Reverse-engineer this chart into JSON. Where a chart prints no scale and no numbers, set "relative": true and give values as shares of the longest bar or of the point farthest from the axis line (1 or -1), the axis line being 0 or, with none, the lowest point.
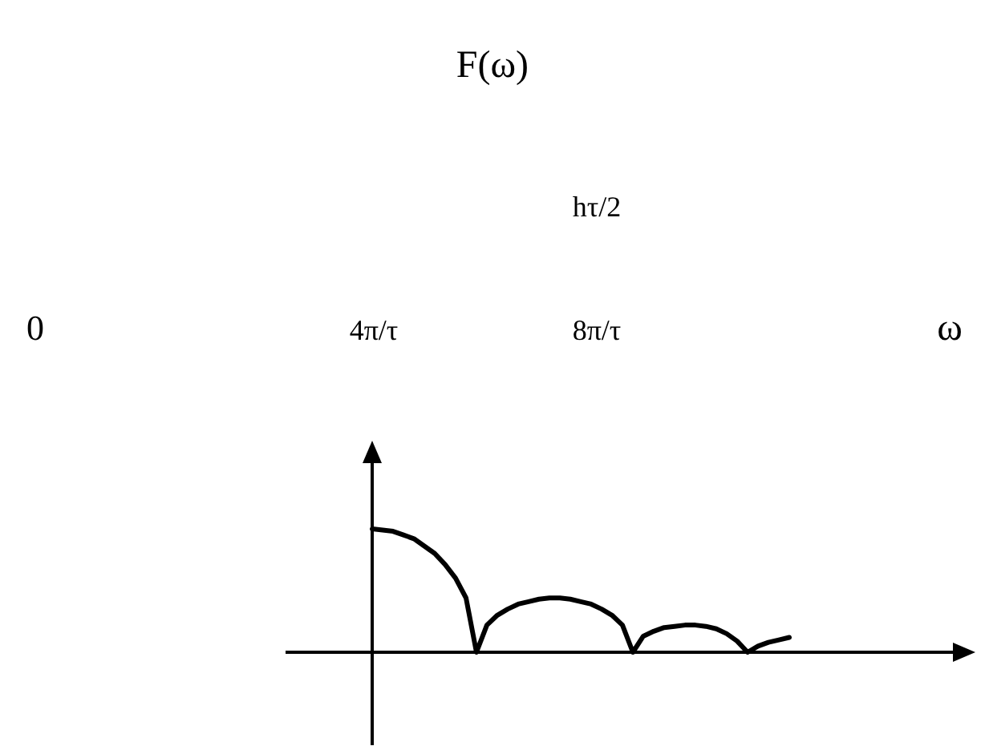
{
  "chart_data": {
    "type": "line",
    "relative": true,
    "annotations": [
      "F(ω)",
      "hτ/2",
      "0",
      "4π/τ",
      "8π/τ",
      "ω"
    ],
    "categories": [
      null,
      null,
      null,
      null,
      null,
      null,
      null,
      null,
      null,
      null,
      null,
      null,
      null,
      null,
      null,
      null,
      null,
      null,
      null,
      null,
      null,
      null,
      null,
      null,
      null,
      null,
      null,
      null,
      null,
      null,
      null,
      null,
      null,
      null,
      null,
      null,
      null,
      null,
      null,
      null,
      null
    ],
    "series": [
      {
        "color": "#000000",
        "values": [
          1,
          0.99,
          0.98,
          0.95,
          0.92,
          0.86,
          0.8,
          0.71,
          0.6,
          0.44,
          0,
          0.22,
          0.3,
          0.35,
          0.39,
          0.41,
          0.43,
          0.44,
          0.44,
          0.43,
          0.41,
          0.39,
          0.35,
          0.3,
          0.22,
          0,
          0.13,
          0.17,
          0.2,
          0.21,
          0.22,
          0.22,
          0.21,
          0.19,
          0.15,
          0.09,
          0,
          0.05,
          0.08,
          0.1,
          0.12
        ]
      }
    ]
  }
}
